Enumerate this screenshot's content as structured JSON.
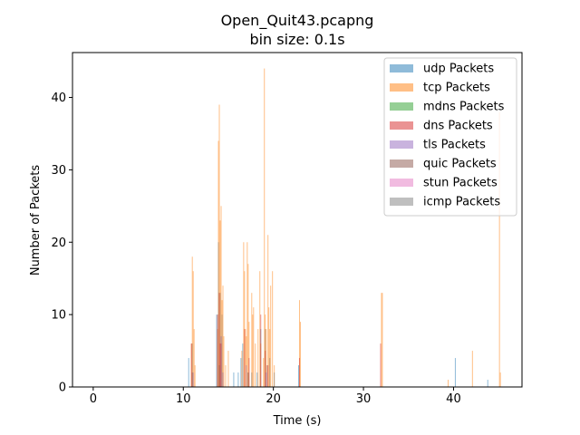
{
  "chart_data": {
    "type": "bar",
    "title": "Open_Quit43.pcapng",
    "subtitle": "bin size: 0.1s",
    "xlabel": "Time (s)",
    "ylabel": "Number of Packets",
    "xlim": [
      -2.3,
      47.6
    ],
    "ylim": [
      0,
      46.2
    ],
    "xticks": [
      0,
      10,
      20,
      30,
      40
    ],
    "yticks": [
      0,
      10,
      20,
      30,
      40
    ],
    "bin_size": 0.1,
    "bar_alpha": 0.5,
    "legend_position": "top-right",
    "series": [
      {
        "name": "udp Packets",
        "color": "#1f77b4",
        "points": [
          [
            10.6,
            4
          ],
          [
            11.0,
            6
          ],
          [
            13.7,
            10
          ],
          [
            13.9,
            20
          ],
          [
            14.1,
            13
          ],
          [
            14.3,
            10
          ],
          [
            15.6,
            2
          ],
          [
            16.1,
            2
          ],
          [
            16.4,
            4
          ],
          [
            16.6,
            6
          ],
          [
            17.2,
            2
          ],
          [
            17.6,
            2
          ],
          [
            18.2,
            2
          ],
          [
            18.6,
            8
          ],
          [
            19.1,
            8
          ],
          [
            19.6,
            4
          ],
          [
            20.1,
            2
          ],
          [
            22.8,
            3
          ],
          [
            40.2,
            4
          ],
          [
            43.8,
            1
          ]
        ]
      },
      {
        "name": "tcp Packets",
        "color": "#ff7f0e",
        "points": [
          [
            10.9,
            6
          ],
          [
            11.0,
            18
          ],
          [
            11.1,
            16
          ],
          [
            11.2,
            8
          ],
          [
            11.3,
            3
          ],
          [
            13.8,
            8
          ],
          [
            13.9,
            34
          ],
          [
            14.0,
            39
          ],
          [
            14.1,
            23
          ],
          [
            14.2,
            25
          ],
          [
            14.3,
            12
          ],
          [
            14.4,
            14
          ],
          [
            14.5,
            7
          ],
          [
            14.7,
            3
          ],
          [
            15.0,
            5
          ],
          [
            16.5,
            5
          ],
          [
            16.7,
            20
          ],
          [
            16.8,
            16
          ],
          [
            16.9,
            8
          ],
          [
            17.0,
            7
          ],
          [
            17.1,
            20
          ],
          [
            17.2,
            17
          ],
          [
            17.3,
            9
          ],
          [
            17.6,
            13
          ],
          [
            17.7,
            10
          ],
          [
            17.8,
            11
          ],
          [
            18.0,
            6
          ],
          [
            18.3,
            8
          ],
          [
            18.5,
            16
          ],
          [
            18.6,
            6
          ],
          [
            18.9,
            4
          ],
          [
            19.0,
            44
          ],
          [
            19.1,
            10
          ],
          [
            19.2,
            8
          ],
          [
            19.4,
            21
          ],
          [
            19.5,
            11
          ],
          [
            19.6,
            8
          ],
          [
            19.7,
            14
          ],
          [
            19.9,
            16
          ],
          [
            20.1,
            3
          ],
          [
            22.9,
            12
          ],
          [
            23.0,
            9
          ],
          [
            32.0,
            13
          ],
          [
            32.1,
            13
          ],
          [
            39.4,
            1
          ],
          [
            42.1,
            5
          ],
          [
            45.1,
            38
          ],
          [
            45.2,
            2
          ]
        ]
      },
      {
        "name": "mdns Packets",
        "color": "#2ca02c",
        "points": []
      },
      {
        "name": "dns Packets",
        "color": "#d62728",
        "points": [
          [
            10.9,
            6
          ],
          [
            13.8,
            10
          ],
          [
            14.0,
            13
          ],
          [
            14.1,
            6
          ],
          [
            14.2,
            6
          ],
          [
            16.8,
            8
          ],
          [
            17.3,
            4
          ],
          [
            18.6,
            10
          ],
          [
            19.1,
            5
          ],
          [
            19.4,
            3
          ],
          [
            22.9,
            4
          ],
          [
            31.9,
            6
          ]
        ]
      },
      {
        "name": "tls Packets",
        "color": "#9467bd",
        "points": [
          [
            11.1,
            2
          ],
          [
            14.2,
            7
          ],
          [
            14.4,
            2
          ],
          [
            17.0,
            3
          ],
          [
            19.2,
            2
          ]
        ]
      },
      {
        "name": "quic Packets",
        "color": "#8c564b",
        "points": [
          [
            11.0,
            2
          ],
          [
            14.0,
            3
          ],
          [
            17.2,
            2
          ],
          [
            19.3,
            3
          ]
        ]
      },
      {
        "name": "stun Packets",
        "color": "#e377c2",
        "points": []
      },
      {
        "name": "icmp Packets",
        "color": "#7f7f7f",
        "points": []
      }
    ]
  }
}
